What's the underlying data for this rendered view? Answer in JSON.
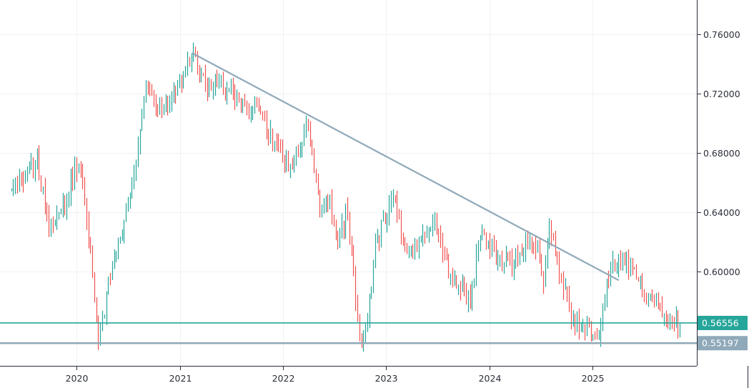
{
  "chart_data": {
    "type": "ohlc",
    "title": "",
    "xlabel": "",
    "ylabel": "",
    "x_ticks": [
      "2020",
      "2021",
      "2022",
      "2023",
      "2024",
      "2025"
    ],
    "y_ticks": [
      "0.76000",
      "0.72000",
      "0.68000",
      "0.64000",
      "0.60000"
    ],
    "ylim": [
      0.5367,
      0.7829
    ],
    "grid": true,
    "price_tags": [
      {
        "label": "0.56556",
        "value": 0.56556,
        "color": "#26a69a"
      },
      {
        "label": "0.55197",
        "value": 0.55197,
        "color": "#8fa9b9"
      }
    ],
    "trendline": {
      "start": {
        "date": "2021-02-15",
        "price": 0.747
      },
      "end": {
        "date": "2025-04-01",
        "price": 0.5945
      }
    },
    "horizontal_levels": [
      0.56556,
      0.55197
    ],
    "anchors": [
      [
        "2019-05-15",
        0.655
      ],
      [
        "2019-08-15",
        0.675
      ],
      [
        "2019-10-01",
        0.628
      ],
      [
        "2019-11-15",
        0.643
      ],
      [
        "2019-12-31",
        0.672
      ],
      [
        "2020-01-20",
        0.662
      ],
      [
        "2020-03-19",
        0.555
      ],
      [
        "2020-05-01",
        0.6
      ],
      [
        "2020-07-01",
        0.645
      ],
      [
        "2020-09-01",
        0.725
      ],
      [
        "2020-10-15",
        0.708
      ],
      [
        "2020-12-31",
        0.726
      ],
      [
        "2021-02-15",
        0.747
      ],
      [
        "2021-04-01",
        0.725
      ],
      [
        "2021-05-10",
        0.728
      ],
      [
        "2021-08-01",
        0.712
      ],
      [
        "2021-09-01",
        0.708
      ],
      [
        "2021-10-01",
        0.715
      ],
      [
        "2021-12-01",
        0.685
      ],
      [
        "2022-01-25",
        0.668
      ],
      [
        "2022-04-01",
        0.7
      ],
      [
        "2022-05-12",
        0.64
      ],
      [
        "2022-06-10",
        0.648
      ],
      [
        "2022-07-15",
        0.618
      ],
      [
        "2022-08-15",
        0.645
      ],
      [
        "2022-09-27",
        0.555
      ],
      [
        "2022-10-20",
        0.558
      ],
      [
        "2022-11-25",
        0.62
      ],
      [
        "2023-01-25",
        0.65
      ],
      [
        "2023-03-08",
        0.612
      ],
      [
        "2023-05-01",
        0.622
      ],
      [
        "2023-06-20",
        0.635
      ],
      [
        "2023-08-15",
        0.595
      ],
      [
        "2023-10-25",
        0.583
      ],
      [
        "2023-12-01",
        0.628
      ],
      [
        "2024-01-31",
        0.61
      ],
      [
        "2024-03-20",
        0.605
      ],
      [
        "2024-05-15",
        0.62
      ],
      [
        "2024-06-15",
        0.615
      ],
      [
        "2024-07-10",
        0.595
      ],
      [
        "2024-07-31",
        0.634
      ],
      [
        "2024-09-01",
        0.6
      ],
      [
        "2024-10-15",
        0.57
      ],
      [
        "2024-11-25",
        0.558
      ],
      [
        "2024-12-26",
        0.56
      ],
      [
        "2025-01-24",
        0.552
      ],
      [
        "2025-02-10",
        0.582
      ],
      [
        "2025-03-01",
        0.6
      ],
      [
        "2025-04-08",
        0.608
      ],
      [
        "2025-06-01",
        0.596
      ],
      [
        "2025-08-15",
        0.578
      ],
      [
        "2025-10-10",
        0.57
      ],
      [
        "2025-11-05",
        0.565
      ]
    ],
    "colors": {
      "up": "#26a69a",
      "down": "#ef5350",
      "grid": "#eef1f5",
      "trendline": "#8fa9b9",
      "axis": "#2a2e39"
    }
  }
}
